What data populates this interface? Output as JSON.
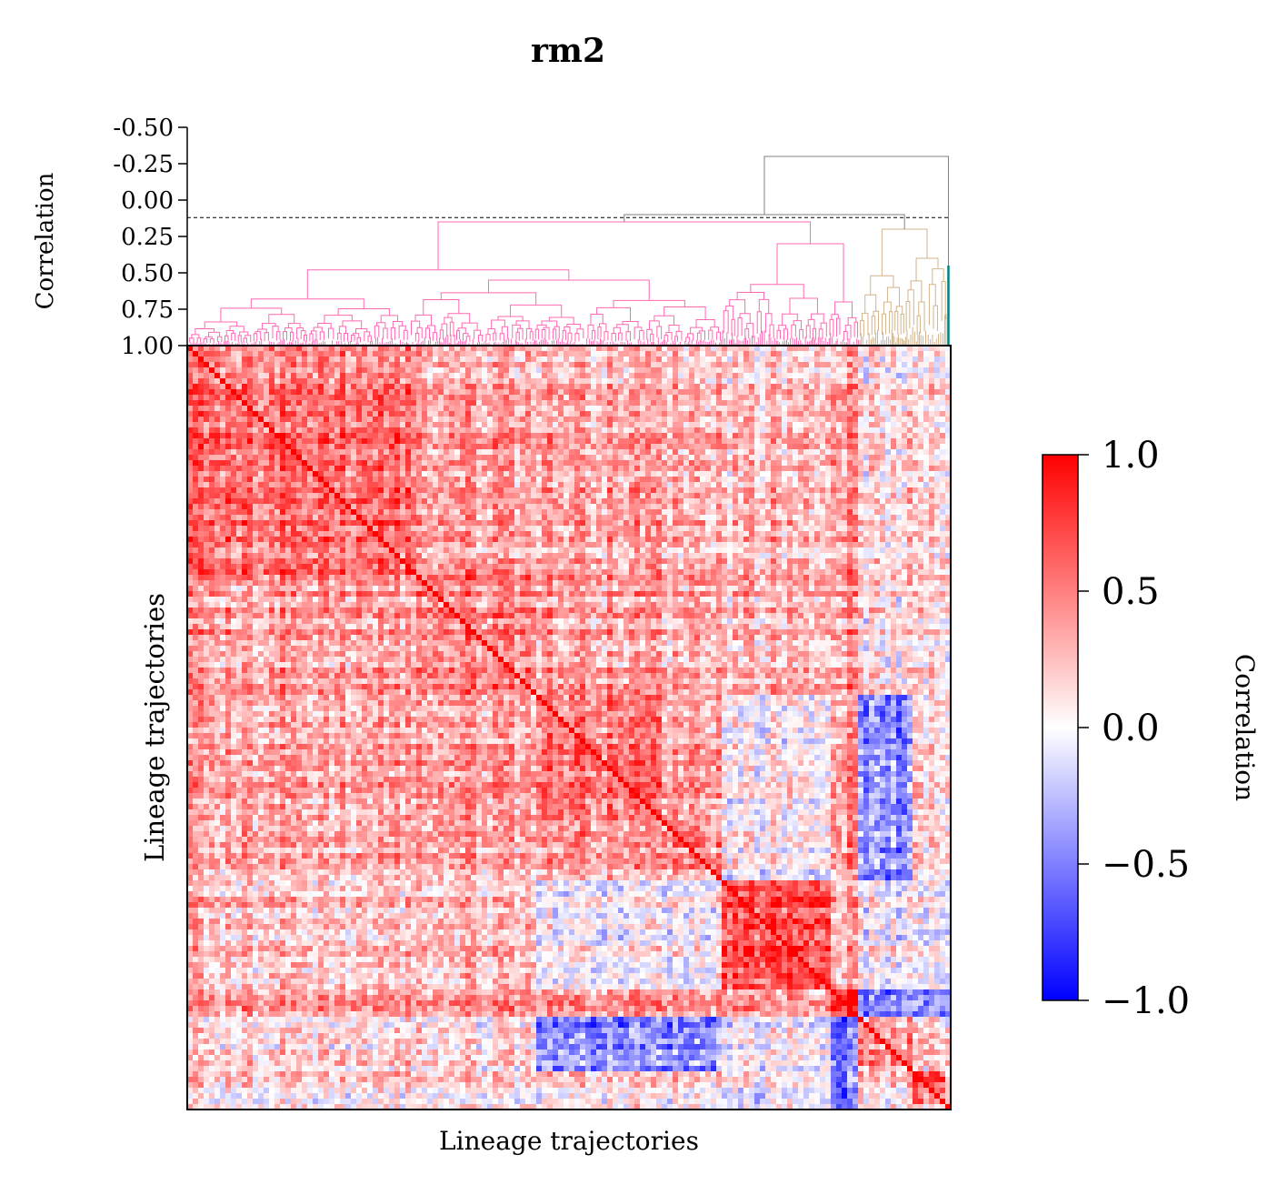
{
  "chart_data": {
    "type": "heatmap",
    "title": "rm2",
    "xlabel": "Lineage trajectories",
    "ylabel": "Lineage trajectories",
    "grid": false,
    "dendrogram": {
      "ylabel": "Correlation",
      "tick_labels": [
        "-0.50",
        "-0.25",
        "0.00",
        "0.25",
        "0.50",
        "0.75",
        "1.00"
      ],
      "tick_values": [
        -0.5,
        -0.25,
        0.0,
        0.25,
        0.5,
        0.75,
        1.0
      ],
      "ylim": [
        -0.5,
        1.0
      ],
      "threshold": 0.12,
      "root_height": -0.3,
      "cluster_colors": [
        "#ff69b4",
        "#d2b48c",
        "#008080"
      ],
      "link_above_threshold_color": "#808080"
    },
    "colorbar": {
      "label": "Correlation",
      "tick_labels": [
        "1.0",
        "0.5",
        "0.0",
        "−0.5",
        "−1.0"
      ],
      "tick_values": [
        1.0,
        0.5,
        0.0,
        -0.5,
        -1.0
      ],
      "range": [
        -1.0,
        1.0
      ],
      "colormap": "bwr",
      "colors": {
        "low": "#0000ff",
        "mid": "#ffffff",
        "high": "#ff0000"
      }
    },
    "clusters": [
      {
        "start": 0.0,
        "end": 0.3,
        "strength": 0.55,
        "color": "#ff69b4"
      },
      {
        "start": 0.3,
        "end": 0.46,
        "strength": 0.5,
        "color": "#ff69b4"
      },
      {
        "start": 0.46,
        "end": 0.62,
        "strength": 0.55,
        "color": "#ff69b4"
      },
      {
        "start": 0.62,
        "end": 0.7,
        "strength": 0.45,
        "color": "#ff69b4"
      },
      {
        "start": 0.7,
        "end": 0.84,
        "strength": 0.75,
        "color": "#ff69b4"
      },
      {
        "start": 0.84,
        "end": 0.88,
        "strength": 0.85,
        "color": "#ff69b4"
      },
      {
        "start": 0.88,
        "end": 0.95,
        "strength": 0.35,
        "color": "#d2b48c"
      },
      {
        "start": 0.95,
        "end": 0.995,
        "strength": 0.6,
        "color": "#d2b48c"
      },
      {
        "start": 0.995,
        "end": 1.0,
        "strength": 0.6,
        "color": "#008080"
      }
    ]
  }
}
